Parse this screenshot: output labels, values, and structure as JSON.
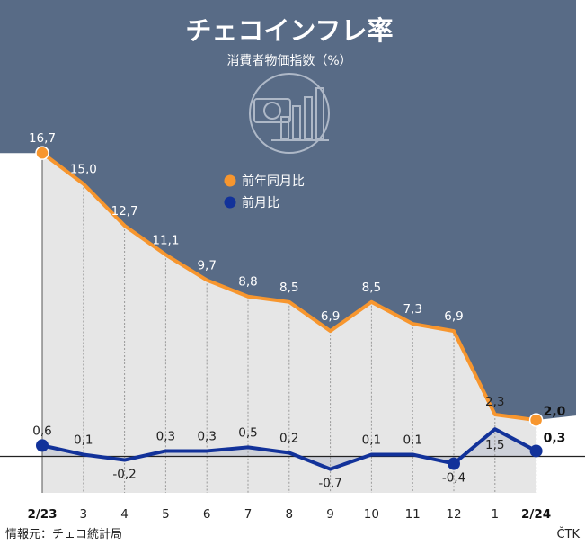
{
  "colors": {
    "header_bg": "#586b86",
    "yoy_series": "#f7962e",
    "mom_series": "#12329a",
    "area_fill": "#e6e6e6",
    "zero_line": "#222222"
  },
  "header": {
    "title": "チェコインフレ率",
    "subtitle": "消費者物価指数（%）",
    "icon": "koruna-coin-bar-chart-icon"
  },
  "legend": [
    {
      "label": "前年同月比",
      "color": "#f7962e"
    },
    {
      "label": "前月比",
      "color": "#12329a"
    }
  ],
  "footer": {
    "source": "情報元：チェコ統計局",
    "agency": "ČTK"
  },
  "chart_data": {
    "type": "line",
    "categories": [
      "2/23",
      "3",
      "4",
      "5",
      "6",
      "7",
      "8",
      "9",
      "10",
      "11",
      "12",
      "1",
      "2/24"
    ],
    "bold_categories": [
      "2/23",
      "2/24"
    ],
    "series": [
      {
        "name": "前年同月比",
        "values": [
          16.7,
          15.0,
          12.7,
          11.1,
          9.7,
          8.8,
          8.5,
          6.9,
          8.5,
          7.3,
          6.9,
          2.3,
          2.0
        ],
        "labels": [
          "16,7",
          "15,0",
          "12,7",
          "11,1",
          "9,7",
          "8,8",
          "8,5",
          "6,9",
          "8,5",
          "7,3",
          "6,9",
          "2,3",
          "2,0"
        ],
        "highlighted_indices": [
          0,
          12
        ]
      },
      {
        "name": "前月比",
        "values": [
          0.6,
          0.1,
          -0.2,
          0.3,
          0.3,
          0.5,
          0.2,
          -0.7,
          0.1,
          0.1,
          -0.4,
          1.5,
          0.3
        ],
        "labels": [
          "0,6",
          "0,1",
          "-0,2",
          "0,3",
          "0,3",
          "0,5",
          "0,2",
          "-0,7",
          "0,1",
          "0,1",
          "-0,4",
          "1,5",
          "0,3"
        ],
        "highlighted_indices": [
          0,
          10,
          12
        ]
      }
    ],
    "zero_line": true,
    "gridlines": "vertical-dotted"
  }
}
